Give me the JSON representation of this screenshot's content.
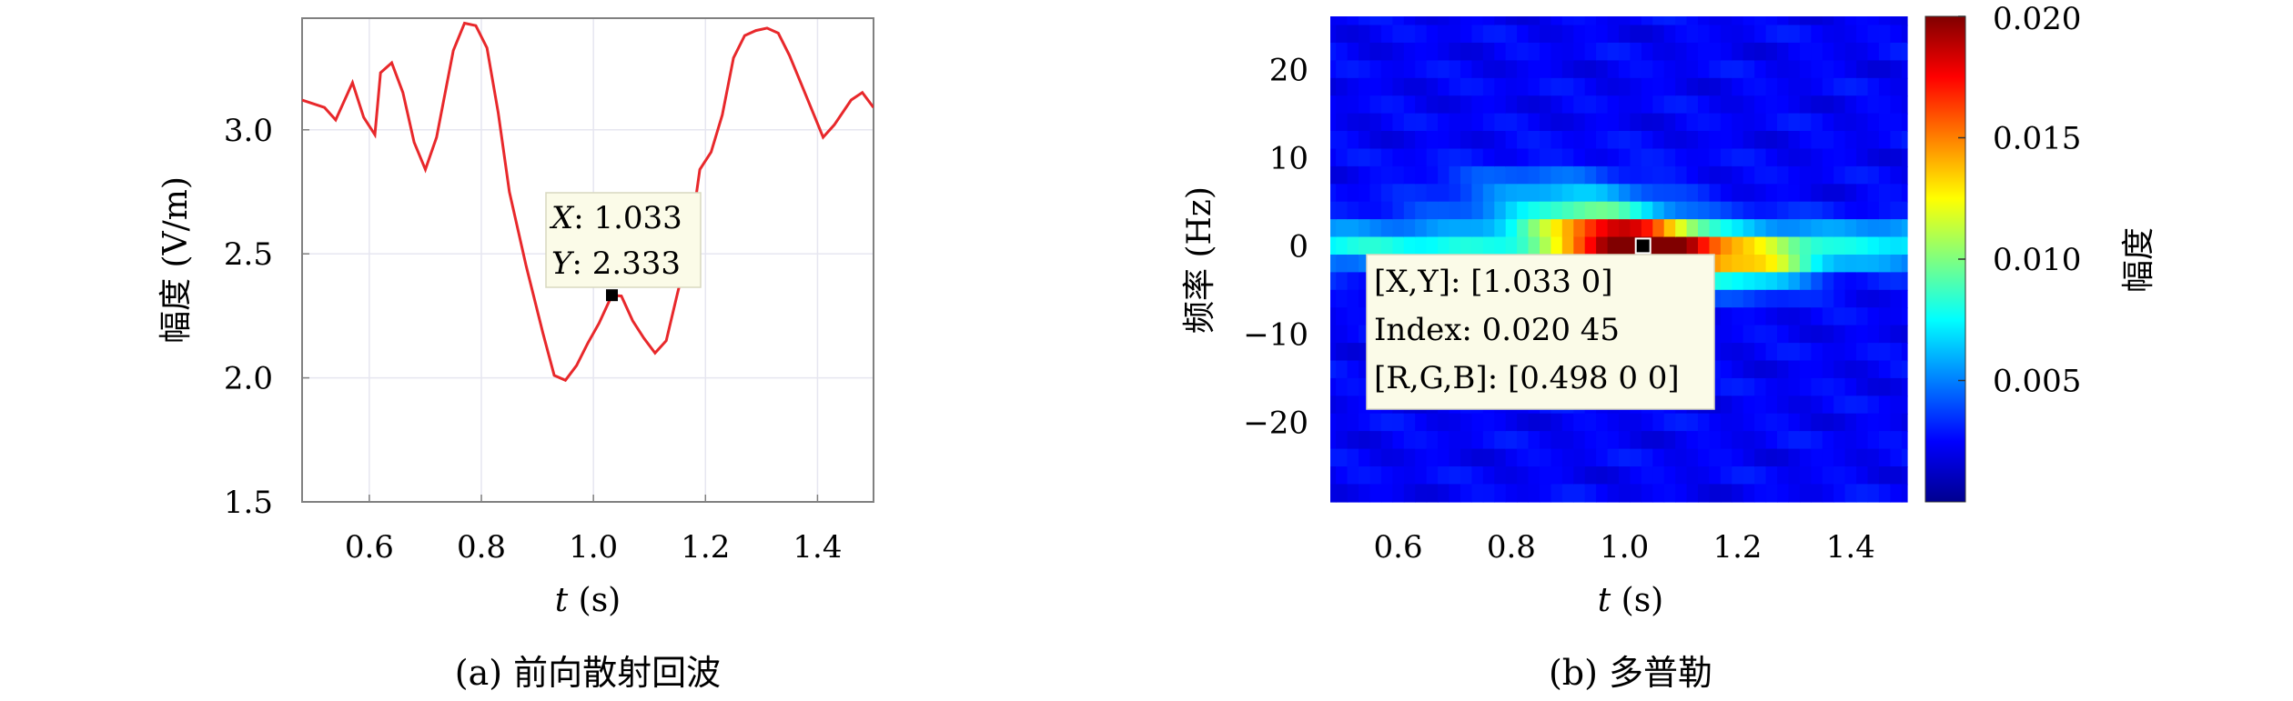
{
  "chart_data": [
    {
      "type": "line",
      "caption": "(a) 前向散射回波",
      "xlabel_var": "t",
      "xlabel_unit": " (s)",
      "ylabel": "幅度 (V/m)",
      "xlim": [
        0.48,
        1.5
      ],
      "ylim": [
        1.5,
        3.45
      ],
      "xticks": [
        "0.6",
        "0.8",
        "1.0",
        "1.2",
        "1.4"
      ],
      "xtick_values": [
        0.6,
        0.8,
        1.0,
        1.2,
        1.4
      ],
      "yticks": [
        "1.5",
        "2.0",
        "2.5",
        "3.0"
      ],
      "ytick_values": [
        1.5,
        2.0,
        2.5,
        3.0
      ],
      "grid": true,
      "line_color": "#e8282b",
      "series": [
        {
          "x": [
            0.48,
            0.52,
            0.54,
            0.57,
            0.59,
            0.61,
            0.62,
            0.64,
            0.66,
            0.68,
            0.7,
            0.72,
            0.75,
            0.77,
            0.79,
            0.81,
            0.83,
            0.85,
            0.88,
            0.91,
            0.93,
            0.95,
            0.97,
            0.99,
            1.01,
            1.033,
            1.05,
            1.07,
            1.09,
            1.11,
            1.13,
            1.15,
            1.17,
            1.19,
            1.21,
            1.23,
            1.25,
            1.27,
            1.29,
            1.31,
            1.33,
            1.35,
            1.37,
            1.39,
            1.41,
            1.43,
            1.46,
            1.48,
            1.5
          ],
          "y": [
            3.12,
            3.09,
            3.04,
            3.19,
            3.05,
            2.98,
            3.23,
            3.27,
            3.15,
            2.95,
            2.84,
            2.97,
            3.32,
            3.43,
            3.42,
            3.33,
            3.07,
            2.75,
            2.45,
            2.18,
            2.01,
            1.99,
            2.05,
            2.14,
            2.22,
            2.333,
            2.33,
            2.23,
            2.16,
            2.1,
            2.15,
            2.34,
            2.52,
            2.84,
            2.91,
            3.06,
            3.29,
            3.38,
            3.4,
            3.41,
            3.39,
            3.3,
            3.19,
            3.08,
            2.97,
            3.02,
            3.12,
            3.15,
            3.09
          ]
        }
      ],
      "datatip": {
        "x_label": "X",
        "x_value": ": 1.033",
        "y_label": "Y",
        "y_value": ": 2.333",
        "x": 1.033,
        "y": 2.333
      }
    },
    {
      "type": "heatmap",
      "caption": "(b) 多普勒",
      "xlabel_var": "t",
      "xlabel_unit": " (s)",
      "ylabel": "频率 (Hz)",
      "xlim": [
        0.48,
        1.5
      ],
      "ylim": [
        -29,
        26
      ],
      "xticks": [
        "0.6",
        "0.8",
        "1.0",
        "1.2",
        "1.4"
      ],
      "xtick_values": [
        0.6,
        0.8,
        1.0,
        1.2,
        1.4
      ],
      "yticks": [
        "20",
        "10",
        "0",
        "−10",
        "−20"
      ],
      "ytick_values": [
        20,
        10,
        0,
        -10,
        -20
      ],
      "colorbar": {
        "label": "幅度",
        "ticks": [
          "0.020",
          "0.015",
          "0.010",
          "0.005"
        ],
        "tick_values": [
          0.02,
          0.015,
          0.01,
          0.005
        ],
        "range": [
          0.0,
          0.02
        ],
        "colormap": "jet"
      },
      "x": [
        0.48,
        0.5,
        0.52,
        0.54,
        0.56,
        0.58,
        0.6,
        0.62,
        0.64,
        0.66,
        0.68,
        0.7,
        0.72,
        0.74,
        0.76,
        0.78,
        0.8,
        0.82,
        0.84,
        0.86,
        0.88,
        0.9,
        0.92,
        0.94,
        0.96,
        0.98,
        1.0,
        1.02,
        1.04,
        1.06,
        1.08,
        1.1,
        1.12,
        1.14,
        1.16,
        1.18,
        1.2,
        1.22,
        1.24,
        1.26,
        1.28,
        1.3,
        1.32,
        1.34,
        1.36,
        1.38,
        1.4,
        1.42,
        1.44,
        1.46,
        1.48,
        1.5
      ],
      "y": [
        26,
        24,
        22,
        20,
        18,
        16,
        14,
        12,
        10,
        8,
        6,
        4,
        2,
        0,
        -2,
        -4,
        -6,
        -8,
        -10,
        -12,
        -14,
        -16,
        -18,
        -20,
        -22,
        -24,
        -26,
        -28
      ],
      "datatip": {
        "line1_label": "[X,Y]",
        "line1_value": ": [1.033 0]",
        "line2": "Index: 0.020 45",
        "line3_label": "[R,G,B]",
        "line3_value": ": [0.498 0 0]",
        "x": 1.033,
        "y": 0
      }
    }
  ]
}
